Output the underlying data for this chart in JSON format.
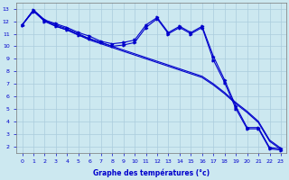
{
  "xlabel": "Graphe des températures (°c)",
  "background_color": "#cce8f0",
  "grid_color": "#aaccdd",
  "line_color": "#0000cc",
  "xlim": [
    -0.5,
    23.5
  ],
  "ylim": [
    1.5,
    13.5
  ],
  "x": [
    0,
    1,
    2,
    3,
    4,
    5,
    6,
    7,
    8,
    9,
    10,
    11,
    12,
    13,
    14,
    15,
    16,
    17,
    18,
    19,
    20,
    21,
    22,
    23
  ],
  "line_data": [
    11.7,
    12.9,
    12.1,
    11.8,
    11.5,
    11.1,
    10.8,
    10.4,
    10.2,
    10.3,
    10.5,
    11.7,
    12.3,
    11.1,
    11.6,
    11.1,
    11.6,
    9.2,
    7.3,
    5.2,
    3.5,
    3.5,
    1.9,
    1.8
  ],
  "line_flat1": [
    11.7,
    12.9,
    12.1,
    11.7,
    11.4,
    11.0,
    10.6,
    10.3,
    10.0,
    9.7,
    9.4,
    9.1,
    8.8,
    8.5,
    8.2,
    7.9,
    7.6,
    7.0,
    6.3,
    5.5,
    4.8,
    4.0,
    2.5,
    1.85
  ],
  "line_flat2": [
    11.7,
    12.85,
    12.0,
    11.6,
    11.3,
    10.9,
    10.5,
    10.2,
    9.9,
    9.6,
    9.3,
    9.0,
    8.7,
    8.4,
    8.1,
    7.8,
    7.5,
    6.9,
    6.2,
    5.4,
    4.7,
    3.9,
    2.4,
    1.75
  ],
  "line_data2": [
    11.7,
    12.8,
    12.0,
    11.6,
    11.3,
    10.9,
    10.6,
    10.3,
    10.0,
    10.1,
    10.3,
    11.5,
    12.2,
    11.0,
    11.5,
    11.0,
    11.5,
    8.9,
    7.1,
    5.0,
    3.4,
    3.4,
    1.8,
    1.7
  ],
  "xticks": [
    0,
    1,
    2,
    3,
    4,
    5,
    6,
    7,
    8,
    9,
    10,
    11,
    12,
    13,
    14,
    15,
    16,
    17,
    18,
    19,
    20,
    21,
    22,
    23
  ],
  "yticks": [
    2,
    3,
    4,
    5,
    6,
    7,
    8,
    9,
    10,
    11,
    12,
    13
  ]
}
